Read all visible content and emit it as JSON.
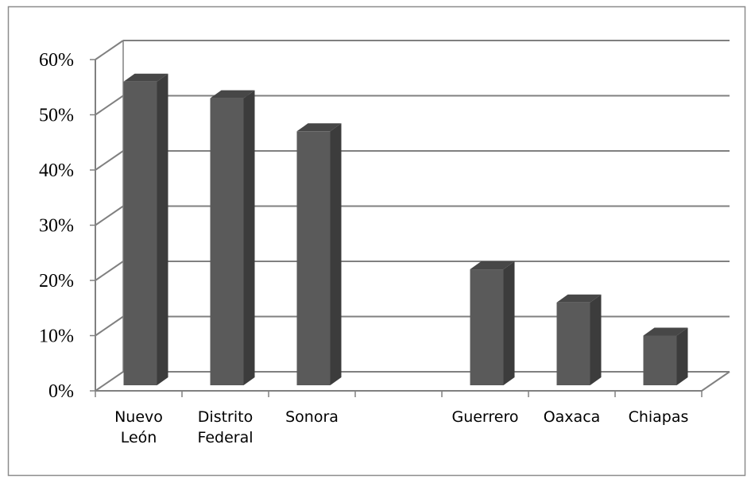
{
  "chart_data": {
    "type": "bar",
    "title": "",
    "xlabel": "",
    "ylabel": "",
    "ylim": [
      0,
      60
    ],
    "y_tick_labels": [
      "0%",
      "10%",
      "20%",
      "30%",
      "40%",
      "50%",
      "60%"
    ],
    "categories": [
      [
        "Nuevo",
        "León"
      ],
      [
        "Distrito",
        "Federal"
      ],
      [
        "Sonora"
      ],
      [
        ""
      ],
      [
        "Guerrero"
      ],
      [
        "Oaxaca"
      ],
      [
        "Chiapas"
      ]
    ],
    "values": [
      55,
      52,
      46,
      null,
      21,
      15,
      9
    ],
    "grid": true,
    "legend": "none",
    "style": "3d-column",
    "colors": {
      "bar_front": "#5a5a5a",
      "bar_side": "#3c3c3c",
      "bar_top": "#474747",
      "grid": "#808080",
      "frame": "#8c8c8c"
    }
  }
}
